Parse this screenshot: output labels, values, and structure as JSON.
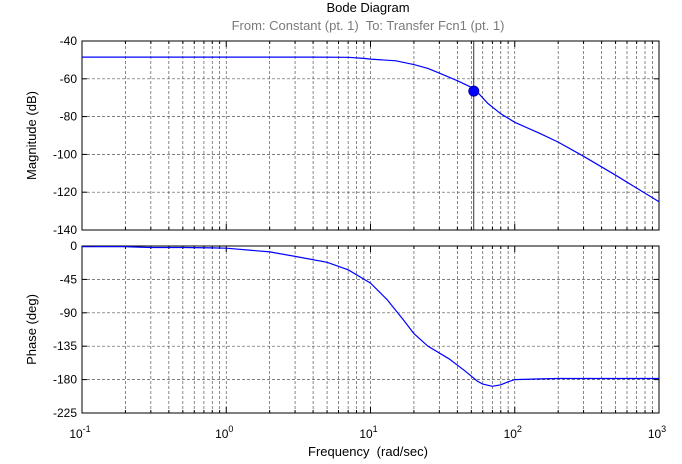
{
  "chart_data": [
    {
      "type": "line",
      "title": "Bode Diagram",
      "subtitle": "From: Constant (pt. 1)  To: Transfer Fcn1 (pt. 1)",
      "ylabel": "Magnitude (dB)",
      "xlabel": "Frequency  (rad/sec)",
      "x_scale": "log",
      "xlim": [
        0.1,
        1000
      ],
      "ylim": [
        -140,
        -40
      ],
      "yticks": [
        "-40",
        "-60",
        "-80",
        "-100",
        "-120",
        "-140"
      ],
      "grid": true,
      "line_color": "#0000ff",
      "series": [
        {
          "x": [
            0.1,
            0.2,
            0.5,
            1,
            2,
            4,
            7,
            9,
            10,
            15,
            20,
            25,
            30,
            40,
            50,
            55,
            65,
            80,
            100,
            150,
            200,
            300,
            500,
            1000
          ],
          "y": [
            -48.5,
            -48.5,
            -48.5,
            -48.5,
            -48.5,
            -48.5,
            -48.6,
            -49.2,
            -49.6,
            -50.5,
            -52.5,
            -54.5,
            -57,
            -61,
            -64.5,
            -67,
            -73,
            -78.5,
            -83,
            -89,
            -93.5,
            -101,
            -111,
            -125
          ]
        }
      ],
      "marker": {
        "x": 52,
        "y": -66.5
      }
    },
    {
      "type": "line",
      "ylabel": "Phase (deg)",
      "x_scale": "log",
      "xlim": [
        0.1,
        1000
      ],
      "ylim": [
        -225,
        0
      ],
      "yticks": [
        "0",
        "-45",
        "-90",
        "-135",
        "-180",
        "-225"
      ],
      "grid": true,
      "line_color": "#0000ff",
      "series": [
        {
          "x": [
            0.1,
            0.2,
            0.3,
            0.5,
            0.8,
            1,
            2,
            3,
            5,
            7,
            10,
            13,
            17,
            20,
            25,
            35,
            45,
            55,
            60,
            70,
            80,
            90,
            100,
            150,
            200,
            300,
            500,
            1000
          ],
          "y": [
            -1,
            -1,
            -2,
            -2,
            -2.5,
            -3,
            -8,
            -14,
            -22,
            -32,
            -50,
            -72,
            -100,
            -118,
            -135,
            -152,
            -168,
            -182,
            -186,
            -189,
            -187,
            -183,
            -180,
            -179,
            -178.5,
            -178.5,
            -178.5,
            -178.5
          ]
        }
      ]
    }
  ],
  "x_axis": {
    "ticks": [
      {
        "base": "10",
        "exp": "-1"
      },
      {
        "base": "10",
        "exp": "0"
      },
      {
        "base": "10",
        "exp": "1"
      },
      {
        "base": "10",
        "exp": "2"
      },
      {
        "base": "10",
        "exp": "3"
      }
    ]
  }
}
